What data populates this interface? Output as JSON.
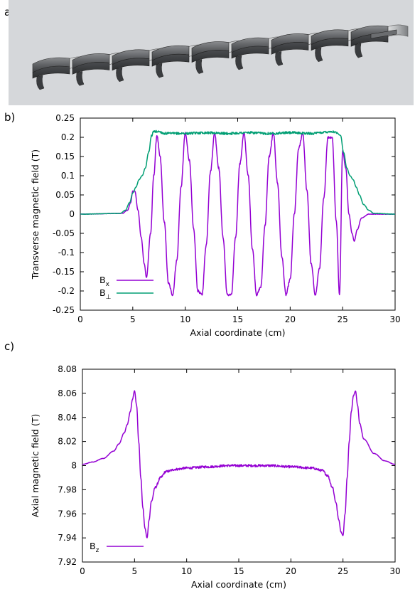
{
  "panels": {
    "a": {
      "label": "a)"
    },
    "b": {
      "label": "b)"
    },
    "c": {
      "label": "c)"
    }
  },
  "colors": {
    "Bx": "#9400d3",
    "Bperp": "#009e73",
    "Bz": "#9400d3",
    "render_bg": "#d5d7da"
  },
  "render": {
    "description_icon": "helical-undulator-3d-render"
  },
  "chart_data": [
    {
      "type": "line",
      "panel": "b",
      "xlabel": "Axial coordinate (cm)",
      "ylabel": "Transverse magnetic field (T)",
      "xlim": [
        0,
        30
      ],
      "ylim": [
        -0.25,
        0.25
      ],
      "xticks": [
        "0",
        "5",
        "10",
        "15",
        "20",
        "25",
        "30"
      ],
      "yticks": [
        "0.25",
        "0.2",
        "0.15",
        "0.1",
        "0.05",
        "0",
        "-0.05",
        "-0.1",
        "-0.15",
        "-0.2",
        "-0.25"
      ],
      "legend_position": "bottom-left",
      "series": [
        {
          "name": "Bx",
          "label_main": "B",
          "label_sub": "x",
          "color": "#9400d3",
          "x": [
            0,
            4.0,
            4.5,
            4.8,
            5.0,
            5.2,
            5.5,
            5.8,
            6.1,
            6.3,
            6.7,
            7.0,
            7.3,
            7.6,
            8.0,
            8.4,
            8.8,
            9.2,
            9.6,
            10.0,
            10.4,
            10.8,
            11.2,
            11.6,
            12.0,
            12.4,
            12.8,
            13.2,
            13.6,
            14.0,
            14.4,
            14.8,
            15.2,
            15.6,
            16.0,
            16.4,
            16.8,
            17.2,
            17.6,
            18.0,
            18.4,
            18.8,
            19.2,
            19.6,
            20.0,
            20.4,
            20.8,
            21.2,
            21.6,
            22.0,
            22.4,
            22.8,
            23.2,
            23.6,
            24.0,
            24.4,
            24.7,
            25.0,
            25.3,
            25.6,
            25.9,
            26.1,
            26.4,
            26.8,
            27.5,
            30
          ],
          "y": [
            0,
            0.002,
            0.01,
            0.03,
            0.06,
            0.06,
            0.01,
            -0.06,
            -0.13,
            -0.165,
            -0.05,
            0.1,
            0.205,
            0.15,
            -0.02,
            -0.18,
            -0.21,
            -0.12,
            0.07,
            0.21,
            0.14,
            -0.04,
            -0.2,
            -0.21,
            -0.08,
            0.11,
            0.21,
            0.12,
            -0.06,
            -0.21,
            -0.21,
            -0.06,
            0.13,
            0.21,
            0.1,
            -0.09,
            -0.21,
            -0.19,
            -0.03,
            0.15,
            0.21,
            0.08,
            -0.11,
            -0.21,
            -0.17,
            0.0,
            0.17,
            0.21,
            0.06,
            -0.13,
            -0.21,
            -0.14,
            0.04,
            0.2,
            0.2,
            -0.02,
            -0.21,
            0.165,
            0.12,
            0.0,
            -0.05,
            -0.07,
            -0.04,
            -0.01,
            0.0,
            0
          ]
        },
        {
          "name": "B⊥",
          "label_main": "B",
          "label_sub": "⊥",
          "color": "#009e73",
          "x": [
            0,
            3.8,
            4.3,
            4.7,
            5.0,
            5.3,
            5.6,
            5.9,
            6.2,
            6.5,
            6.8,
            7.0,
            7.5,
            8.0,
            10,
            12,
            14,
            16,
            18,
            20,
            22,
            24,
            24.4,
            24.8,
            25.1,
            25.4,
            25.7,
            26.0,
            26.3,
            26.6,
            27.0,
            27.5,
            28.0,
            30
          ],
          "y": [
            0,
            0.002,
            0.01,
            0.03,
            0.055,
            0.07,
            0.09,
            0.1,
            0.12,
            0.16,
            0.205,
            0.215,
            0.215,
            0.21,
            0.21,
            0.212,
            0.21,
            0.212,
            0.21,
            0.212,
            0.21,
            0.215,
            0.212,
            0.205,
            0.16,
            0.12,
            0.1,
            0.09,
            0.07,
            0.05,
            0.025,
            0.01,
            0.002,
            0
          ]
        }
      ]
    },
    {
      "type": "line",
      "panel": "c",
      "xlabel": "Axial coordinate (cm)",
      "ylabel": "Axial magnetic field (T)",
      "xlim": [
        0,
        30
      ],
      "ylim": [
        7.92,
        8.08
      ],
      "xticks": [
        "0",
        "5",
        "10",
        "15",
        "20",
        "25",
        "30"
      ],
      "yticks": [
        "8.08",
        "8.06",
        "8.04",
        "8.02",
        "8",
        "7.98",
        "7.96",
        "7.94",
        "7.92"
      ],
      "legend_position": "bottom-left",
      "series": [
        {
          "name": "Bz",
          "label_main": "B",
          "label_sub": "z",
          "color": "#9400d3",
          "x": [
            0,
            1.0,
            2.0,
            3.0,
            3.5,
            4.0,
            4.3,
            4.6,
            4.8,
            5.0,
            5.2,
            5.4,
            5.6,
            5.8,
            6.0,
            6.2,
            6.4,
            6.6,
            7.0,
            7.5,
            8.0,
            9.0,
            10.0,
            12.0,
            14.0,
            16.0,
            18.0,
            20.0,
            22.0,
            23.0,
            23.5,
            24.0,
            24.3,
            24.6,
            24.8,
            25.0,
            25.2,
            25.4,
            25.6,
            25.8,
            26.0,
            26.2,
            26.4,
            26.6,
            27.0,
            28.0,
            29.0,
            30
          ],
          "y": [
            8.001,
            8.003,
            8.006,
            8.012,
            8.018,
            8.027,
            8.034,
            8.045,
            8.055,
            8.062,
            8.05,
            8.02,
            7.99,
            7.965,
            7.948,
            7.94,
            7.955,
            7.97,
            7.982,
            7.99,
            7.995,
            7.997,
            7.998,
            7.999,
            8.0,
            8.0,
            8.0,
            7.999,
            7.998,
            7.996,
            7.992,
            7.982,
            7.97,
            7.955,
            7.945,
            7.942,
            7.96,
            7.99,
            8.02,
            8.045,
            8.058,
            8.062,
            8.05,
            8.035,
            8.022,
            8.01,
            8.004,
            8.001
          ]
        }
      ]
    }
  ]
}
